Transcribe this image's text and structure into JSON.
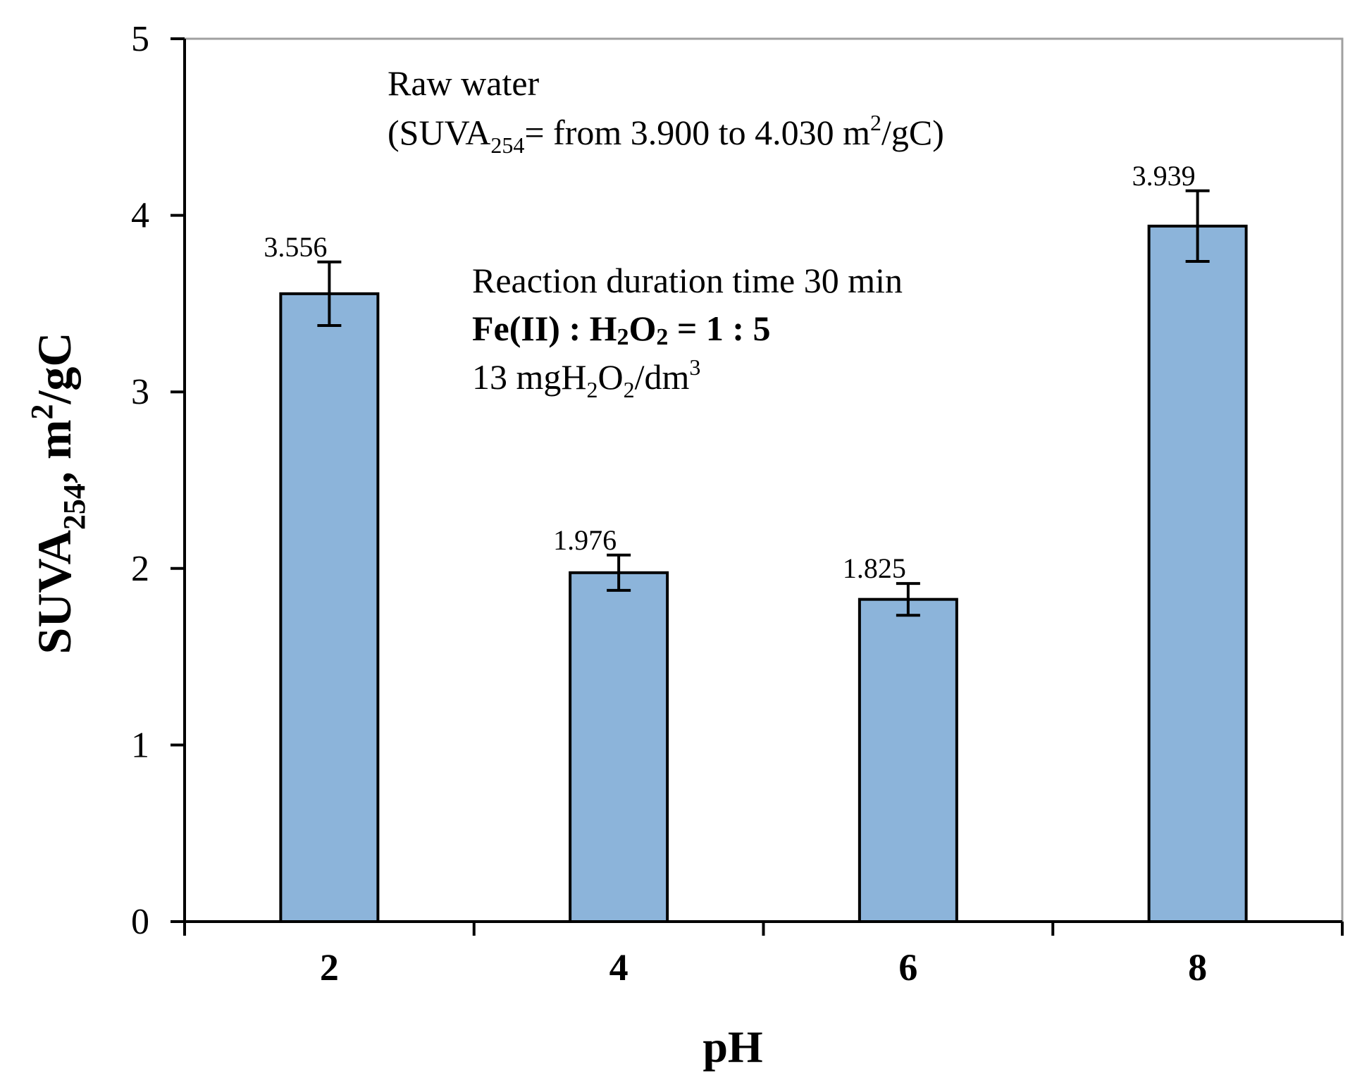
{
  "chart_data": {
    "type": "bar",
    "categories": [
      "2",
      "4",
      "6",
      "8"
    ],
    "values": [
      3.556,
      1.976,
      1.825,
      3.939
    ],
    "errors": [
      0.18,
      0.1,
      0.09,
      0.2
    ],
    "data_labels": [
      "3.556",
      "1.976",
      "1.825",
      "3.939"
    ],
    "xlabel": "pH",
    "ylabel": {
      "main": "SUVA",
      "sub": "254",
      "unit_prefix": ",  m",
      "unit_sup": "2",
      "unit_suffix": "/gC"
    },
    "ylim": [
      0,
      5
    ],
    "yticks": [
      "0",
      "1",
      "2",
      "3",
      "4",
      "5"
    ],
    "bar_color": "#8cb4da",
    "bar_edge_color": "#000000",
    "axis_color": "#000000",
    "frame_color": "#a0a0a0",
    "annotations": {
      "raw_water": {
        "line1": "Raw water",
        "line2_pre": "(SUVA",
        "line2_sub": "254",
        "line2_mid": "=  from  3.900 to 4.030 m",
        "line2_sup": "2",
        "line2_post": "/gC)"
      },
      "conditions": {
        "line1": "Reaction duration time 30 min",
        "line2_pre": "Fe(II) : H",
        "line2_sub1": "2",
        "line2_mid": "O",
        "line2_sub2": "2",
        "line2_post": "  =  1 : 5",
        "line3_pre": "13 mgH",
        "line3_sub1": "2",
        "line3_mid": "O",
        "line3_sub2": "2",
        "line3_post": "/dm",
        "line3_sup": "3"
      }
    }
  }
}
